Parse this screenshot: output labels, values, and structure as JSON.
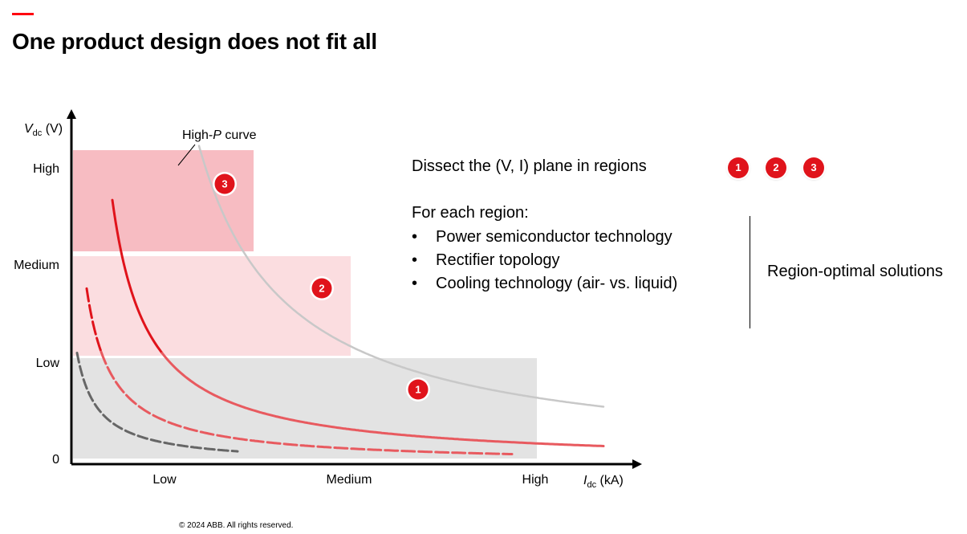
{
  "slide": {
    "title": "One product design does not fit all",
    "copyright": "© 2024 ABB. All rights reserved.",
    "accent_color": "#ff000f"
  },
  "chart_data": {
    "type": "diagram",
    "y_axis": {
      "label_var": "V",
      "label_sub": "dc",
      "label_unit": " (V)",
      "ticks": [
        "High",
        "Medium",
        "Low",
        "0"
      ]
    },
    "x_axis": {
      "label_var": "I",
      "label_sub": "dc",
      "label_unit": " (kA)",
      "ticks": [
        "Low",
        "Medium",
        "High"
      ]
    },
    "regions": [
      {
        "id": "1",
        "label": "1",
        "color": "#e3e3e3",
        "x": [
          0,
          1.0
        ],
        "y": [
          0,
          1.0
        ]
      },
      {
        "id": "2",
        "label": "2",
        "color": "#fbdde0",
        "x": [
          0,
          0.6
        ],
        "y": [
          1.0,
          2.0
        ]
      },
      {
        "id": "3",
        "label": "3",
        "color": "#f7bcc2",
        "x": [
          0,
          0.4
        ],
        "y": [
          2.0,
          3.0
        ]
      }
    ],
    "curve_label": {
      "prefix": "High-",
      "var": "P",
      "suffix": " curve"
    },
    "curves": [
      {
        "name": "high-p-curve",
        "power": 0.62,
        "color": "#c8c8c8",
        "dashed_low": false
      },
      {
        "name": "curve-red-solid",
        "power": 0.32,
        "color_high": "#e0131b",
        "color_low": "#e85a5f",
        "dashed_low": false
      },
      {
        "name": "curve-red-dashed",
        "power": 0.18,
        "color_high": "#e0131b",
        "color_low": "#e85a5f",
        "dashed_low": true
      },
      {
        "name": "curve-gray-dashed",
        "power": 0.095,
        "color": "#666666",
        "dashed_low": true
      }
    ]
  },
  "text": {
    "heading": "Dissect the (V, I) plane in regions",
    "region_badges": [
      "1",
      "2",
      "3"
    ],
    "for_each": "For each region:",
    "bullets": [
      "Power semiconductor technology",
      "Rectifier topology",
      "Cooling technology (air- vs. liquid)"
    ],
    "result": "Region-optimal solutions"
  }
}
